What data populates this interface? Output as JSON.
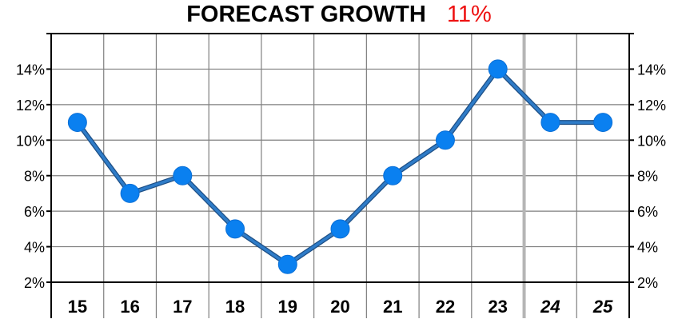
{
  "title": {
    "text": "FORECAST GROWTH",
    "value": "11%",
    "value_color": "#ee1111"
  },
  "chart_data": {
    "type": "line",
    "title": "FORECAST GROWTH",
    "categories": [
      "15",
      "16",
      "17",
      "18",
      "19",
      "20",
      "21",
      "22",
      "23",
      "24",
      "25"
    ],
    "forecast_categories": [
      "24",
      "25"
    ],
    "values": [
      11,
      7,
      8,
      5,
      3,
      5,
      8,
      10,
      14,
      11,
      11
    ],
    "y_unit": "%",
    "ylim": [
      2,
      16
    ],
    "yticks": [
      2,
      4,
      6,
      8,
      10,
      12,
      14
    ],
    "ytick_labels": [
      "2%",
      "4%",
      "6%",
      "8%",
      "10%",
      "12%",
      "14%"
    ],
    "grid": true,
    "line_color": "#2f7cc8",
    "marker_color": "#0a80f0",
    "xlabel": "",
    "ylabel": ""
  }
}
